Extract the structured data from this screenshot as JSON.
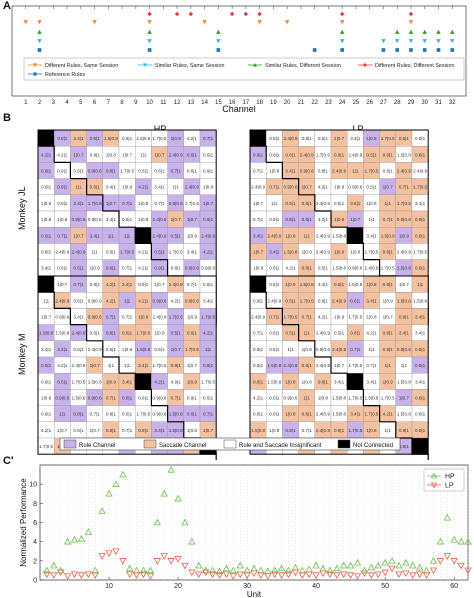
{
  "panel_a": {
    "letter": "A",
    "xlabel": "Channel",
    "channels": [
      "1",
      "2",
      "3",
      "4",
      "5",
      "6",
      "7",
      "8",
      "9",
      "10",
      "11",
      "12",
      "13",
      "14",
      "15",
      "16",
      "17",
      "18",
      "19",
      "20",
      "21",
      "22",
      "23",
      "24",
      "25",
      "26",
      "27",
      "28",
      "29",
      "30",
      "31",
      "32"
    ],
    "legend": [
      {
        "label": "Different Rules, Same Session",
        "color": "#ef8a2b",
        "marker": "triangle-down"
      },
      {
        "label": "Similar Rules, Same Session",
        "color": "#35b6e6",
        "marker": "triangle-down"
      },
      {
        "label": "Similar Rules, Different Session",
        "color": "#2ca02c",
        "marker": "triangle-up"
      },
      {
        "label": "Different Rules, Different Session",
        "color": "#e04040",
        "marker": "diamond"
      },
      {
        "label": "Reference Rules",
        "color": "#1f77b4",
        "marker": "square"
      }
    ],
    "rows": [
      {
        "marker": "diamond",
        "color": "#e04040",
        "channels": [
          10,
          12,
          13,
          16,
          17,
          18,
          24,
          29
        ]
      },
      {
        "marker": "triangle-down",
        "color": "#ef8a2b",
        "channels": [
          1,
          2,
          6,
          10,
          14,
          18,
          20,
          24,
          29
        ]
      },
      {
        "marker": "triangle-up",
        "color": "#2ca02c",
        "channels": [
          2,
          10,
          15,
          24,
          28,
          29,
          30,
          31,
          32
        ]
      },
      {
        "marker": "triangle-down",
        "color": "#35b6e6",
        "channels": [
          2,
          10,
          15,
          24,
          27,
          28,
          29,
          30,
          31,
          32
        ]
      },
      {
        "marker": "square",
        "color": "#1f77b4",
        "channels": [
          2,
          10,
          15,
          22,
          24,
          27,
          28,
          29,
          30,
          31,
          32
        ]
      }
    ]
  },
  "panel_b": {
    "letter": "B",
    "hp_title": "HP",
    "lp_title": "LP",
    "monkey_jl": "Monkey JL",
    "monkey_m": "Monkey M",
    "legend": [
      {
        "label": "Rule Channel",
        "color": "#c9b2ec"
      },
      {
        "label": "Saccade Channel",
        "color": "#f4c2a0"
      },
      {
        "label": "Rule and Saccade Insignificant",
        "color": "#ffffff"
      },
      {
        "label": "Not Connected",
        "color": "#000000"
      }
    ],
    "cell_values": [
      "1|1",
      "0.8|1",
      "0.9|1",
      "0.7|1",
      "1|0.7",
      "1.5|0.8",
      "2.4|0.9",
      "1|0.8",
      "0.5|1",
      "3.4|1",
      "1.7|0.5",
      "0.9|0.6",
      "4.2|1",
      "1|0.9",
      "0.6|1"
    ]
  },
  "panel_c": {
    "letter": "C'"
  },
  "chart_data": {
    "type": "scatter",
    "xlabel": "Unit",
    "ylabel": "Normalized Performance",
    "xlim": [
      0,
      62
    ],
    "ylim": [
      0,
      12
    ],
    "xticks": [
      10,
      20,
      30,
      40,
      50,
      60
    ],
    "yticks": [
      0,
      2,
      4,
      6,
      8,
      10
    ],
    "grid": "vertical dotted",
    "legend_position": "top-right",
    "series": [
      {
        "name": "HP",
        "color": "#6cbf4b",
        "marker": "triangle-up",
        "x": [
          1,
          2,
          3,
          4,
          5,
          6,
          7,
          8,
          9,
          10,
          11,
          12,
          13,
          14,
          15,
          16,
          17,
          18,
          19,
          20,
          21,
          22,
          23,
          24,
          25,
          26,
          27,
          28,
          29,
          30,
          31,
          32,
          33,
          34,
          35,
          36,
          37,
          38,
          39,
          40,
          41,
          42,
          43,
          44,
          45,
          46,
          47,
          48,
          49,
          50,
          51,
          52,
          53,
          54,
          55,
          56,
          57,
          58,
          59,
          60,
          61,
          62
        ],
        "values": [
          1,
          1.5,
          1,
          4,
          4.2,
          4.3,
          5,
          1,
          7.2,
          9,
          10,
          11,
          1.2,
          1,
          1,
          1,
          6,
          9,
          11.5,
          8.5,
          6,
          4,
          1.5,
          1,
          1,
          0.9,
          1.2,
          1,
          1.5,
          1,
          1.2,
          1,
          0.9,
          1,
          1.2,
          1,
          1.3,
          1,
          1.1,
          1.5,
          1.2,
          1,
          1.2,
          1.5,
          1.5,
          1.8,
          1,
          1.3,
          1.5,
          1.8,
          2,
          1.5,
          1.8,
          1.5,
          1.3,
          1,
          2,
          4,
          6.5,
          4.2,
          4,
          4
        ]
      },
      {
        "name": "LP",
        "color": "#e8604c",
        "marker": "triangle-down",
        "x": [
          1,
          2,
          3,
          4,
          5,
          6,
          7,
          8,
          9,
          10,
          11,
          12,
          13,
          14,
          15,
          16,
          17,
          18,
          19,
          20,
          21,
          22,
          23,
          24,
          25,
          26,
          27,
          28,
          29,
          30,
          31,
          32,
          33,
          34,
          35,
          36,
          37,
          38,
          39,
          40,
          41,
          42,
          43,
          44,
          45,
          46,
          47,
          48,
          49,
          50,
          51,
          52,
          53,
          54,
          55,
          56,
          57,
          58,
          59,
          60,
          61,
          62
        ],
        "values": [
          0.6,
          0.5,
          0.8,
          0.4,
          0.6,
          0.5,
          0.6,
          0.5,
          2.5,
          2.8,
          3,
          2,
          0.6,
          0.5,
          0.6,
          0.4,
          2,
          2.5,
          2,
          2.2,
          1.5,
          0.8,
          0.6,
          0.8,
          0.6,
          0.5,
          0.6,
          0.4,
          0.6,
          0.5,
          0.7,
          0.5,
          0.4,
          0.6,
          0.5,
          0.6,
          0.8,
          0.5,
          0.6,
          0.5,
          0.7,
          0.6,
          0.5,
          0.6,
          0.5,
          0.4,
          0.7,
          0.5,
          0.6,
          0.8,
          1.2,
          0.6,
          0.7,
          0.5,
          0.6,
          0.5,
          1,
          2,
          2.5,
          2,
          1.5,
          1
        ]
      }
    ]
  }
}
